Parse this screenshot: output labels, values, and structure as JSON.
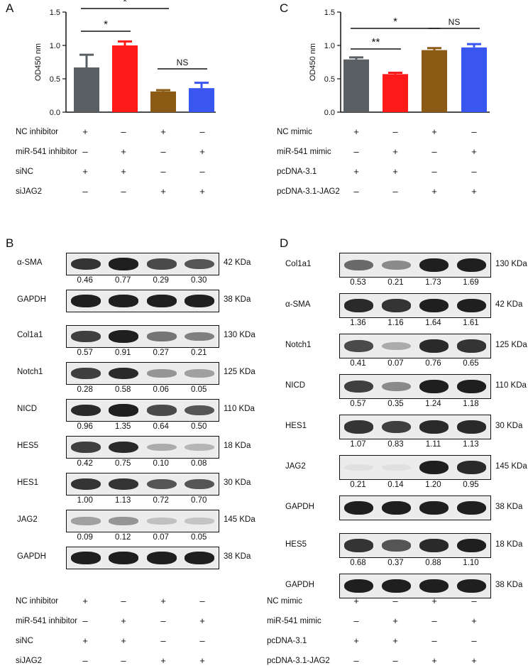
{
  "panelA": {
    "letter": "A",
    "chart_data": {
      "type": "bar",
      "ylabel": "OD450 nm",
      "ylim": [
        0,
        1.5
      ],
      "yticks": [
        "0.0",
        "0.5",
        "1.0",
        "1.5"
      ],
      "values": [
        0.67,
        1.0,
        0.31,
        0.36
      ],
      "errors": [
        0.19,
        0.06,
        0.02,
        0.08
      ],
      "colors": [
        "#5a5f63",
        "#ff1a1a",
        "#8b5a14",
        "#3a56f0"
      ],
      "significance": [
        {
          "label": "*",
          "from": 0,
          "to": 1
        },
        {
          "label": "*",
          "from": 0,
          "to": 2
        },
        {
          "label": "NS",
          "from": 2,
          "to": 3
        }
      ]
    },
    "conditions": [
      {
        "label": "NC inhibitor",
        "signs": [
          "+",
          "–",
          "+",
          "–"
        ]
      },
      {
        "label": "miR-541 inhibitor",
        "signs": [
          "–",
          "+",
          "–",
          "+"
        ]
      },
      {
        "label": "siNC",
        "signs": [
          "+",
          "+",
          "–",
          "–"
        ]
      },
      {
        "label": "siJAG2",
        "signs": [
          "–",
          "–",
          "+",
          "+"
        ]
      }
    ]
  },
  "panelC": {
    "letter": "C",
    "chart_data": {
      "type": "bar",
      "ylabel": "OD450 nm",
      "ylim": [
        0,
        1.5
      ],
      "yticks": [
        "0.0",
        "0.5",
        "1.0",
        "1.5"
      ],
      "values": [
        0.79,
        0.57,
        0.93,
        0.97
      ],
      "errors": [
        0.03,
        0.02,
        0.03,
        0.05
      ],
      "colors": [
        "#5a5f63",
        "#ff1a1a",
        "#8b5a14",
        "#3a56f0"
      ],
      "significance": [
        {
          "label": "**",
          "from": 0,
          "to": 1
        },
        {
          "label": "*",
          "from": 0,
          "to": 2
        },
        {
          "label": "NS",
          "from": 2,
          "to": 3
        }
      ]
    },
    "conditions": [
      {
        "label": "NC mimic",
        "signs": [
          "+",
          "–",
          "+",
          "–"
        ]
      },
      {
        "label": "miR-541 mimic",
        "signs": [
          "–",
          "+",
          "–",
          "+"
        ]
      },
      {
        "label": "pcDNA-3.1",
        "signs": [
          "+",
          "+",
          "–",
          "–"
        ]
      },
      {
        "label": "pcDNA-3.1-JAG2",
        "signs": [
          "–",
          "–",
          "+",
          "+"
        ]
      }
    ]
  },
  "panelB": {
    "letter": "B",
    "blots": [
      {
        "name": "α-SMA",
        "kda": "42 KDa",
        "values": [
          "0.46",
          "0.77",
          "0.29",
          "0.30"
        ],
        "intensity": [
          0.85,
          0.95,
          0.75,
          0.7
        ]
      },
      {
        "name": "GAPDH",
        "kda": "38 KDa",
        "values": [],
        "intensity": [
          0.95,
          0.95,
          0.95,
          0.95
        ]
      },
      {
        "name": "Col1a1",
        "kda": "130 KDa",
        "values": [
          "0.57",
          "0.91",
          "0.27",
          "0.21"
        ],
        "intensity": [
          0.8,
          0.95,
          0.55,
          0.5
        ]
      },
      {
        "name": "Notch1",
        "kda": "125 KDa",
        "values": [
          "0.28",
          "0.58",
          "0.06",
          "0.05"
        ],
        "intensity": [
          0.8,
          0.9,
          0.4,
          0.35
        ]
      },
      {
        "name": "NICD",
        "kda": "110 KDa",
        "values": [
          "0.96",
          "1.35",
          "0.64",
          "0.50"
        ],
        "intensity": [
          0.9,
          0.95,
          0.75,
          0.7
        ]
      },
      {
        "name": "HES5",
        "kda": "18 KDa",
        "values": [
          "0.42",
          "0.75",
          "0.10",
          "0.08"
        ],
        "intensity": [
          0.8,
          0.9,
          0.3,
          0.25
        ]
      },
      {
        "name": "HES1",
        "kda": "30 KDa",
        "values": [
          "1.00",
          "1.13",
          "0.72",
          "0.70"
        ],
        "intensity": [
          0.85,
          0.85,
          0.7,
          0.7
        ]
      },
      {
        "name": "JAG2",
        "kda": "145 KDa",
        "values": [
          "0.09",
          "0.12",
          "0.07",
          "0.05"
        ],
        "intensity": [
          0.35,
          0.4,
          0.2,
          0.18
        ]
      },
      {
        "name": "GAPDH",
        "kda": "38 KDa",
        "values": [],
        "intensity": [
          0.95,
          0.95,
          0.95,
          0.95
        ]
      }
    ],
    "conditions": [
      {
        "label": "NC inhibitor",
        "signs": [
          "+",
          "–",
          "+",
          "–"
        ]
      },
      {
        "label": "miR-541 inhibitor",
        "signs": [
          "–",
          "+",
          "–",
          "+"
        ]
      },
      {
        "label": "siNC",
        "signs": [
          "+",
          "+",
          "–",
          "–"
        ]
      },
      {
        "label": "siJAG2",
        "signs": [
          "–",
          "–",
          "+",
          "+"
        ]
      }
    ]
  },
  "panelD": {
    "letter": "D",
    "blots": [
      {
        "name": "Col1a1",
        "kda": "130 KDa",
        "values": [
          "0.53",
          "0.21",
          "1.73",
          "1.69"
        ],
        "intensity": [
          0.6,
          0.45,
          0.95,
          0.95
        ]
      },
      {
        "name": "α-SMA",
        "kda": "42 KDa",
        "values": [
          "1.36",
          "1.16",
          "1.64",
          "1.61"
        ],
        "intensity": [
          0.9,
          0.85,
          0.95,
          0.95
        ]
      },
      {
        "name": "Notch1",
        "kda": "125 KDa",
        "values": [
          "0.41",
          "0.07",
          "0.76",
          "0.65"
        ],
        "intensity": [
          0.75,
          0.3,
          0.9,
          0.85
        ]
      },
      {
        "name": "NICD",
        "kda": "110 KDa",
        "values": [
          "0.57",
          "0.35",
          "1.24",
          "1.18"
        ],
        "intensity": [
          0.8,
          0.45,
          0.95,
          0.95
        ]
      },
      {
        "name": "HES1",
        "kda": "30 KDa",
        "values": [
          "1.07",
          "0.83",
          "1.11",
          "1.13"
        ],
        "intensity": [
          0.85,
          0.8,
          0.9,
          0.9
        ]
      },
      {
        "name": "JAG2",
        "kda": "145 KDa",
        "values": [
          "0.21",
          "0.14",
          "1.20",
          "0.95"
        ],
        "intensity": [
          0.05,
          0.05,
          0.95,
          0.9
        ]
      },
      {
        "name": "GAPDH",
        "kda": "38 KDa",
        "values": [],
        "intensity": [
          0.95,
          0.95,
          0.95,
          0.95
        ]
      },
      {
        "name": "HES5",
        "kda": "18 KDa",
        "values": [
          "0.68",
          "0.37",
          "0.88",
          "1.10"
        ],
        "intensity": [
          0.85,
          0.7,
          0.9,
          0.95
        ]
      },
      {
        "name": "GAPDH",
        "kda": "38 KDa",
        "values": [],
        "intensity": [
          0.95,
          0.95,
          0.95,
          0.95
        ]
      }
    ],
    "conditions": [
      {
        "label": "NC mimic",
        "signs": [
          "+",
          "–",
          "+",
          "–"
        ]
      },
      {
        "label": "miR-541 mimic",
        "signs": [
          "–",
          "+",
          "–",
          "+"
        ]
      },
      {
        "label": "pcDNA-3.1",
        "signs": [
          "+",
          "+",
          "–",
          "–"
        ]
      },
      {
        "label": "pcDNA-3.1-JAG2",
        "signs": [
          "–",
          "–",
          "+",
          "+"
        ]
      }
    ]
  }
}
